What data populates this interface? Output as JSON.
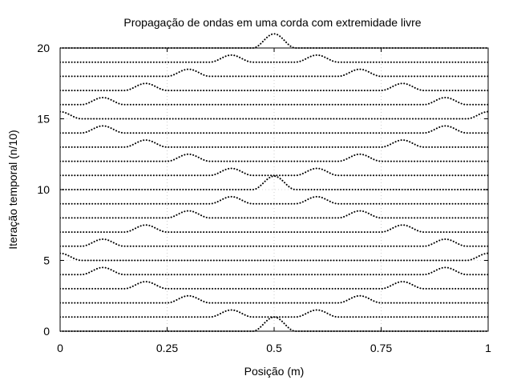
{
  "chart_data": {
    "type": "line",
    "title": "Propagação de ondas em uma corda com extremidade livre",
    "xlabel": "Posição (m)",
    "ylabel": "Iteração temporal (n/10)",
    "xlim": [
      0,
      1
    ],
    "ylim": [
      0,
      20
    ],
    "xticks": [
      {
        "value": 0,
        "label": "0"
      },
      {
        "value": 0.25,
        "label": "0.25"
      },
      {
        "value": 0.5,
        "label": "0.5"
      },
      {
        "value": 0.75,
        "label": "0.75"
      },
      {
        "value": 1,
        "label": "1"
      }
    ],
    "yticks": [
      {
        "value": 0,
        "label": "0"
      },
      {
        "value": 5,
        "label": "5"
      },
      {
        "value": 10,
        "label": "10"
      },
      {
        "value": 15,
        "label": "15"
      },
      {
        "value": 20,
        "label": "20"
      }
    ],
    "grid": true,
    "line_style": "dotted",
    "pulse": {
      "amplitude": 1,
      "half_width": 0.05
    },
    "series": [
      {
        "offset": 0,
        "pulses": [
          {
            "x": 0.5,
            "a": 1
          }
        ]
      },
      {
        "offset": 1,
        "pulses": [
          {
            "x": 0.4,
            "a": 0.5
          },
          {
            "x": 0.6,
            "a": 0.5
          }
        ]
      },
      {
        "offset": 2,
        "pulses": [
          {
            "x": 0.3,
            "a": 0.5
          },
          {
            "x": 0.7,
            "a": 0.5
          }
        ]
      },
      {
        "offset": 3,
        "pulses": [
          {
            "x": 0.2,
            "a": 0.5
          },
          {
            "x": 0.8,
            "a": 0.5
          }
        ]
      },
      {
        "offset": 4,
        "pulses": [
          {
            "x": 0.1,
            "a": 0.5
          },
          {
            "x": 0.9,
            "a": 0.5
          }
        ]
      },
      {
        "offset": 5,
        "pulses": [
          {
            "x": 0.0,
            "a": 0.5
          },
          {
            "x": 1.0,
            "a": 0.5
          }
        ]
      },
      {
        "offset": 6,
        "pulses": [
          {
            "x": 0.1,
            "a": 0.5
          },
          {
            "x": 0.9,
            "a": 0.5
          }
        ]
      },
      {
        "offset": 7,
        "pulses": [
          {
            "x": 0.2,
            "a": 0.5
          },
          {
            "x": 0.8,
            "a": 0.5
          }
        ]
      },
      {
        "offset": 8,
        "pulses": [
          {
            "x": 0.3,
            "a": 0.5
          },
          {
            "x": 0.7,
            "a": 0.5
          }
        ]
      },
      {
        "offset": 9,
        "pulses": [
          {
            "x": 0.4,
            "a": 0.5
          },
          {
            "x": 0.6,
            "a": 0.5
          }
        ]
      },
      {
        "offset": 10,
        "pulses": [
          {
            "x": 0.5,
            "a": 0.95
          }
        ]
      },
      {
        "offset": 11,
        "pulses": [
          {
            "x": 0.4,
            "a": 0.5
          },
          {
            "x": 0.6,
            "a": 0.5
          }
        ]
      },
      {
        "offset": 12,
        "pulses": [
          {
            "x": 0.3,
            "a": 0.5
          },
          {
            "x": 0.7,
            "a": 0.5
          }
        ]
      },
      {
        "offset": 13,
        "pulses": [
          {
            "x": 0.2,
            "a": 0.5
          },
          {
            "x": 0.8,
            "a": 0.5
          }
        ]
      },
      {
        "offset": 14,
        "pulses": [
          {
            "x": 0.1,
            "a": 0.5
          },
          {
            "x": 0.9,
            "a": 0.5
          }
        ]
      },
      {
        "offset": 15,
        "pulses": [
          {
            "x": 0.0,
            "a": 0.5
          },
          {
            "x": 1.0,
            "a": 0.5
          }
        ]
      },
      {
        "offset": 16,
        "pulses": [
          {
            "x": 0.1,
            "a": 0.5
          },
          {
            "x": 0.9,
            "a": 0.5
          }
        ]
      },
      {
        "offset": 17,
        "pulses": [
          {
            "x": 0.2,
            "a": 0.5
          },
          {
            "x": 0.8,
            "a": 0.5
          }
        ]
      },
      {
        "offset": 18,
        "pulses": [
          {
            "x": 0.3,
            "a": 0.5
          },
          {
            "x": 0.7,
            "a": 0.5
          }
        ]
      },
      {
        "offset": 19,
        "pulses": [
          {
            "x": 0.4,
            "a": 0.5
          },
          {
            "x": 0.6,
            "a": 0.5
          }
        ]
      },
      {
        "offset": 20,
        "pulses": [
          {
            "x": 0.5,
            "a": 1
          }
        ]
      }
    ]
  }
}
